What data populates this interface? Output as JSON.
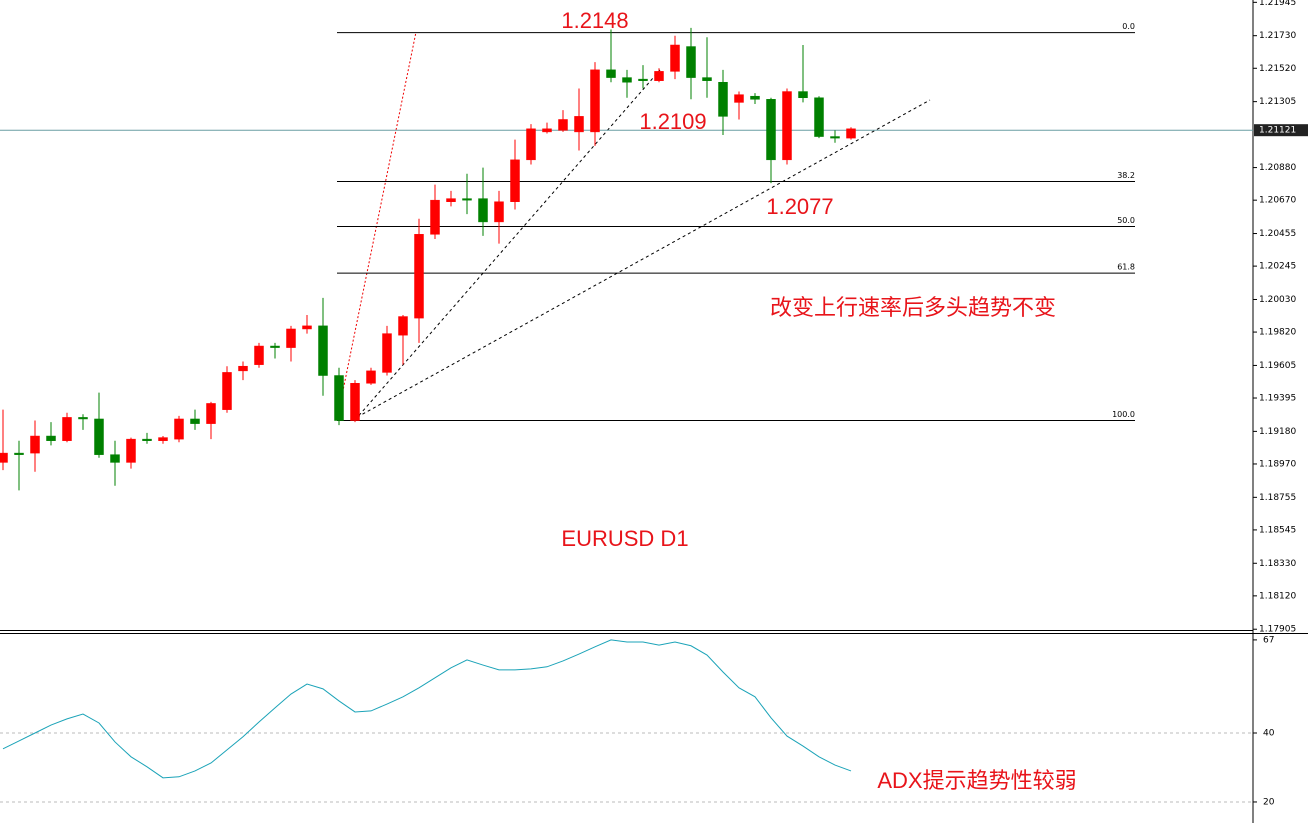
{
  "chart_data": [
    {
      "type": "candlestick",
      "title": "EURUSD D1",
      "open": [
        1.1898,
        1.1904,
        1.1904,
        1.1915,
        1.1912,
        1.1927,
        1.1926,
        1.1903,
        1.1898,
        1.1913,
        1.1912,
        1.1913,
        1.1926,
        1.1923,
        1.1932,
        1.1957,
        1.1961,
        1.1973,
        1.1972,
        1.1984,
        1.1986,
        1.1954,
        1.1925,
        1.1949,
        1.1956,
        1.198,
        1.1991,
        1.2045,
        1.2066,
        1.2068,
        1.2068,
        1.2053,
        1.2066,
        1.2093,
        1.2111,
        1.2112,
        1.2111,
        1.2111,
        1.2151,
        1.2146,
        1.2145,
        1.2144,
        1.215,
        1.2166,
        1.2146,
        1.2143,
        1.213,
        1.2134,
        1.2132,
        1.2093,
        1.2137,
        1.2133,
        1.2108,
        1.2107
      ],
      "high": [
        1.1932,
        1.1912,
        1.1925,
        1.1924,
        1.193,
        1.1929,
        1.1943,
        1.1912,
        1.1914,
        1.1917,
        1.1915,
        1.1928,
        1.1932,
        1.1937,
        1.196,
        1.1963,
        1.1975,
        1.1975,
        1.1986,
        1.1993,
        1.2004,
        1.1959,
        1.1951,
        1.1959,
        1.1986,
        1.1993,
        1.2055,
        1.2077,
        1.2073,
        1.2084,
        1.2088,
        1.2073,
        1.2106,
        1.2116,
        1.2117,
        1.2125,
        1.2139,
        1.2156,
        1.2177,
        1.2151,
        1.2154,
        1.2152,
        1.2173,
        1.2178,
        1.2172,
        1.2151,
        1.2137,
        1.2136,
        1.2133,
        1.2139,
        1.2167,
        1.2134,
        1.2112,
        1.2114
      ],
      "low": [
        1.1893,
        1.188,
        1.1892,
        1.1909,
        1.1911,
        1.1919,
        1.1901,
        1.1883,
        1.1894,
        1.191,
        1.191,
        1.1911,
        1.1919,
        1.1913,
        1.193,
        1.1951,
        1.1959,
        1.1965,
        1.1963,
        1.1981,
        1.1941,
        1.1922,
        1.1924,
        1.1948,
        1.1954,
        1.1961,
        1.1975,
        1.2042,
        1.2063,
        1.2058,
        1.2044,
        1.2039,
        1.2061,
        1.209,
        1.211,
        1.2111,
        1.2099,
        1.2102,
        1.2143,
        1.2133,
        1.2139,
        1.2143,
        1.2145,
        1.2132,
        1.2133,
        1.2109,
        1.2119,
        1.2129,
        1.2078,
        1.209,
        1.213,
        1.2107,
        1.2104,
        1.2106
      ],
      "close": [
        1.1904,
        1.1903,
        1.1915,
        1.1912,
        1.1927,
        1.1926,
        1.1903,
        1.1898,
        1.1913,
        1.1912,
        1.1914,
        1.1926,
        1.1923,
        1.1936,
        1.1956,
        1.196,
        1.1973,
        1.1972,
        1.1984,
        1.1986,
        1.1954,
        1.1925,
        1.1949,
        1.1957,
        1.1981,
        1.1992,
        1.2045,
        1.2067,
        1.2068,
        1.2067,
        1.2053,
        1.2066,
        1.2093,
        1.2113,
        1.2113,
        1.2119,
        1.2121,
        1.2151,
        1.2146,
        1.2143,
        1.2144,
        1.215,
        1.2167,
        1.2146,
        1.2144,
        1.2121,
        1.2135,
        1.2132,
        1.2093,
        1.2137,
        1.2133,
        1.2108,
        1.2107,
        1.2113
      ],
      "up_color": "#ff0000",
      "down_color": "#008000",
      "ylim": [
        1.179,
        1.2196
      ],
      "yticks": [
        1.21945,
        {
          "value": 1.2173,
          "label": "1.21730"
        },
        {
          "value": 1.2152,
          "label": "1.21520"
        },
        1.21305,
        {
          "value": 1.2088,
          "label": "1.20880"
        },
        {
          "value": 1.2067,
          "label": "1.20670"
        },
        1.20455,
        1.20245,
        {
          "value": 1.2003,
          "label": "1.20030"
        },
        {
          "value": 1.1982,
          "label": "1.19820"
        },
        1.19605,
        1.19395,
        {
          "value": 1.1918,
          "label": "1.19180"
        },
        {
          "value": 1.1897,
          "label": "1.18970"
        },
        1.18755,
        1.18545,
        {
          "value": 1.1833,
          "label": "1.18330"
        },
        {
          "value": 1.1812,
          "label": "1.18120"
        },
        1.17905
      ],
      "current_price": 1.21121,
      "fibonacci": [
        {
          "label": "0.0",
          "price": 1.2175
        },
        {
          "label": "38.2",
          "price": 1.2079
        },
        {
          "label": "50.0",
          "price": 1.205
        },
        {
          "label": "61.8",
          "price": 1.202
        },
        {
          "label": "100.0",
          "price": 1.1925
        }
      ],
      "annotations": [
        "1.2148",
        "1.2109",
        "1.2077",
        "改变上行速率后多头趋势不变"
      ]
    },
    {
      "type": "line",
      "title": "ADX提示趋势性较弱",
      "values": [
        35.4,
        37.7,
        40.0,
        42.3,
        44.1,
        45.5,
        42.9,
        37.4,
        33.1,
        30.2,
        27.0,
        27.3,
        29.0,
        31.3,
        35.1,
        38.9,
        43.2,
        47.3,
        51.3,
        54.2,
        52.8,
        49.3,
        46.1,
        46.4,
        48.4,
        50.5,
        53.1,
        56.0,
        58.9,
        61.2,
        59.7,
        58.3,
        58.3,
        58.6,
        59.2,
        60.9,
        62.9,
        65.0,
        67.0,
        66.4,
        66.4,
        65.5,
        66.4,
        65.3,
        62.6,
        57.7,
        53.1,
        50.5,
        44.4,
        39.1,
        36.2,
        33.1,
        30.7,
        29.0
      ],
      "color": "#1ba3b8",
      "ylim": [
        13.9,
        69
      ],
      "yticks": [
        20,
        40,
        67
      ],
      "grid": true
    }
  ]
}
